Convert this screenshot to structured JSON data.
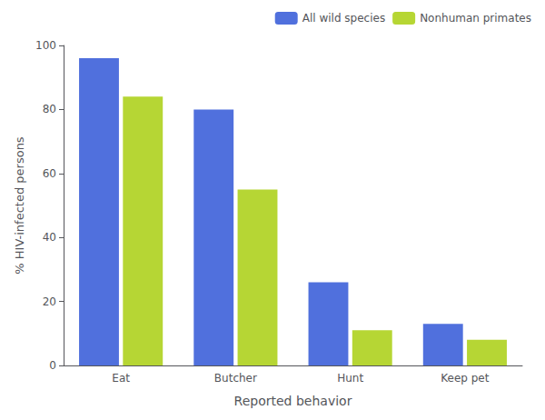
{
  "chart_data": {
    "type": "bar",
    "categories": [
      "Eat",
      "Butcher",
      "Hunt",
      "Keep pet"
    ],
    "series": [
      {
        "name": "All wild species",
        "values": [
          96,
          80,
          26,
          13
        ]
      },
      {
        "name": "Nonhuman primates",
        "values": [
          84,
          55,
          11,
          8
        ]
      }
    ],
    "xlabel": "Reported behavior",
    "ylabel": "% HIV-infected persons",
    "ylim": [
      0,
      100
    ],
    "yticks": [
      0,
      20,
      40,
      60,
      80,
      100
    ],
    "grid": false,
    "legend": "upper right"
  }
}
